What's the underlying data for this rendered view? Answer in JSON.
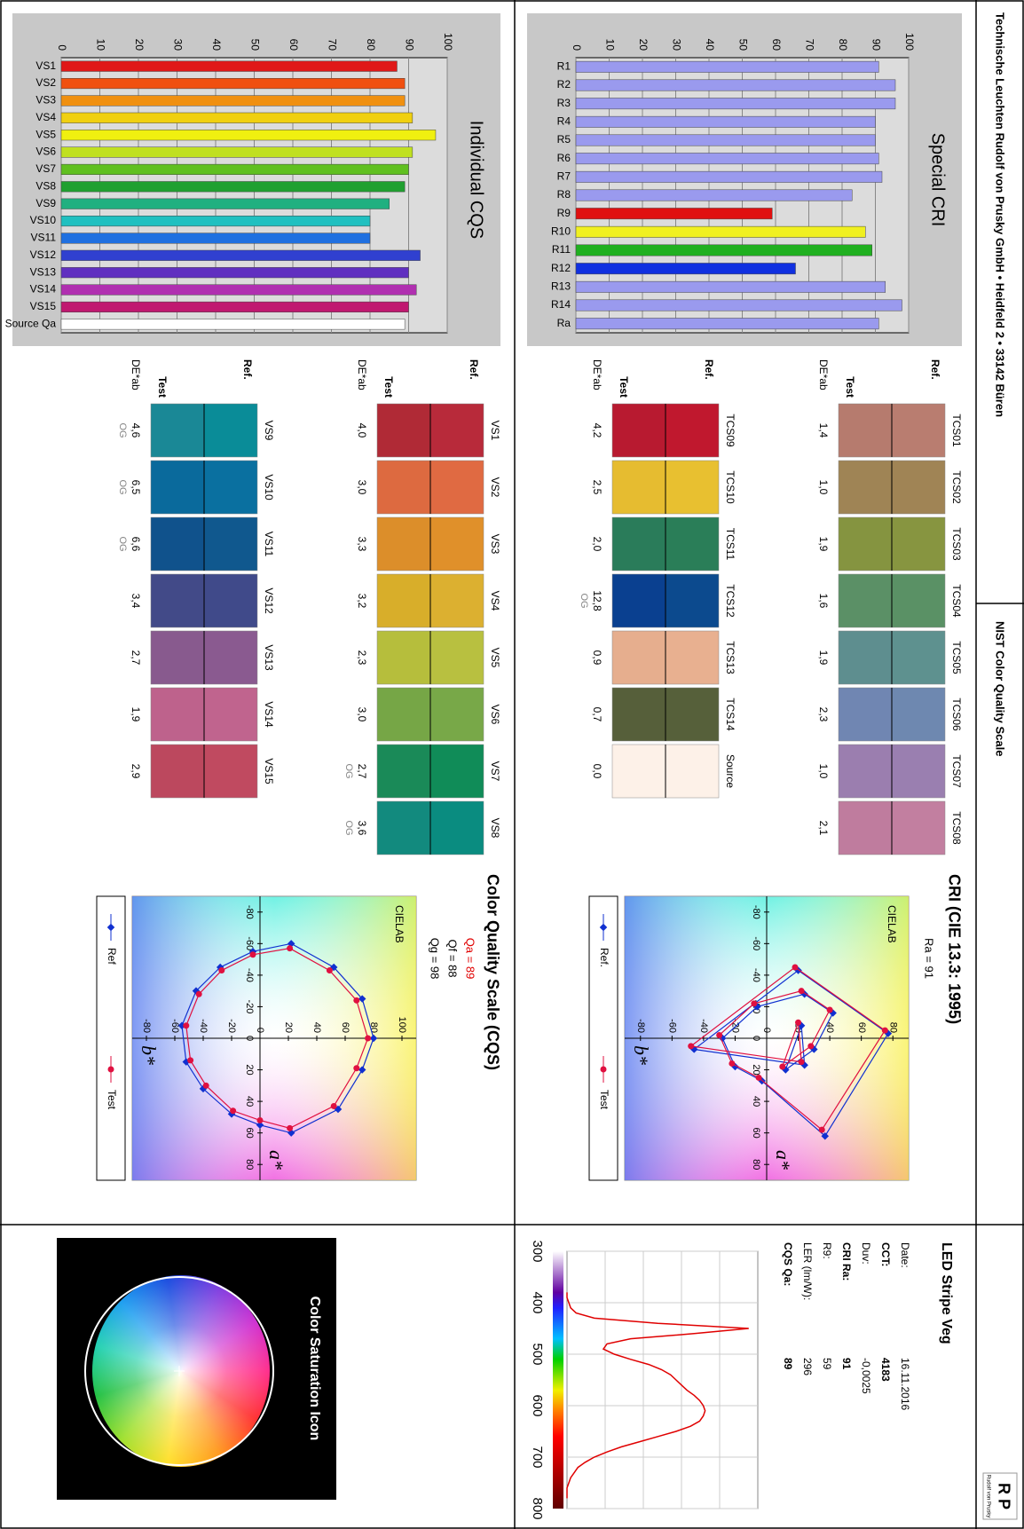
{
  "header": {
    "company": "Technische Leuchten Rudolf von Prusky GmbH • Heidfeld 2 • 33142 Büren",
    "title": "NIST Color Quality Scale",
    "logo": "R P",
    "logo_caption": "Rudolf von Prusky"
  },
  "led": {
    "title": "LED Stripe Veg",
    "rows": [
      {
        "label": "Date:",
        "value": "16.11.2016",
        "bold": false
      },
      {
        "label": "CCT:",
        "value": "4183",
        "bold": true
      },
      {
        "label": "Duv:",
        "value": "-0,0025",
        "bold": false
      },
      {
        "label": "CRI Ra:",
        "value": "91",
        "bold": true
      },
      {
        "label": "R9:",
        "value": "59",
        "bold": false
      },
      {
        "label": "LER (lm/W):",
        "value": "296",
        "bold": false
      },
      {
        "label": "CQS Qa:",
        "value": "89",
        "bold": true
      }
    ]
  },
  "spectrum": {
    "type": "line",
    "color": "#e00000",
    "x": [
      380,
      390,
      400,
      410,
      420,
      430,
      440,
      450,
      460,
      470,
      480,
      490,
      500,
      510,
      520,
      530,
      540,
      550,
      560,
      570,
      580,
      590,
      600,
      610,
      620,
      630,
      640,
      650,
      660,
      670,
      680,
      690,
      700,
      710,
      720,
      730,
      740,
      750,
      760,
      770,
      780
    ],
    "values": [
      0,
      0,
      0.01,
      0.02,
      0.05,
      0.15,
      0.5,
      1.0,
      0.7,
      0.35,
      0.22,
      0.2,
      0.26,
      0.35,
      0.45,
      0.52,
      0.57,
      0.6,
      0.63,
      0.66,
      0.7,
      0.73,
      0.75,
      0.76,
      0.75,
      0.73,
      0.68,
      0.6,
      0.5,
      0.4,
      0.3,
      0.22,
      0.15,
      0.1,
      0.06,
      0.04,
      0.02,
      0.01,
      0,
      0,
      0
    ],
    "xlim": [
      300,
      800
    ],
    "ylim": [
      0,
      1.05
    ],
    "xticks": [
      300,
      400,
      500,
      600,
      700,
      800
    ],
    "grid": true
  },
  "saturation_icon": {
    "title": "Color Saturation Icon"
  },
  "cri": {
    "title": "CRI (CIE 13.3: 1995)",
    "summary": [
      {
        "text": "Ra = 91",
        "color": "#000000"
      }
    ],
    "cielab": {
      "type": "scatter",
      "label": "CIELAB",
      "xlabel": "a*",
      "ylabel": "b*",
      "xlim": [
        -90,
        90
      ],
      "ylim": [
        -90,
        90
      ],
      "xticks": [
        -80,
        -60,
        -40,
        -20,
        0,
        20,
        40,
        60,
        80
      ],
      "yticks": [
        -80,
        -60,
        -40,
        -20,
        0,
        20,
        40,
        60,
        80
      ],
      "series": [
        {
          "name": "Ref.",
          "color": "#1030d0",
          "marker": "diamond",
          "a": [
            20,
            7,
            -16,
            -28,
            -20,
            0,
            18,
            27,
            62,
            -3,
            -43,
            7,
            17,
            -8
          ],
          "b": [
            12,
            30,
            42,
            24,
            -6,
            -28,
            -20,
            -3,
            37,
            77,
            20,
            -46,
            24,
            22
          ]
        },
        {
          "name": "Test",
          "color": "#e01040",
          "marker": "circle",
          "a": [
            18,
            5,
            -18,
            -30,
            -22,
            -2,
            16,
            25,
            58,
            -5,
            -45,
            5,
            15,
            -10
          ],
          "b": [
            10,
            28,
            40,
            22,
            -8,
            -30,
            -22,
            -5,
            35,
            75,
            18,
            -48,
            22,
            20
          ]
        }
      ]
    },
    "swatch_labels": {
      "ref": "Ref.",
      "test": "Test",
      "de": "DE*ab"
    },
    "swatches": [
      [
        {
          "name": "TCS01",
          "ref": "#b97d70",
          "test": "#b67b6e",
          "de": "1,4"
        },
        {
          "name": "TCS02",
          "ref": "#a08455",
          "test": "#9f8455",
          "de": "1,0"
        },
        {
          "name": "TCS03",
          "ref": "#879540",
          "test": "#859440",
          "de": "1,9"
        },
        {
          "name": "TCS04",
          "ref": "#5a9165",
          "test": "#5b9066",
          "de": "1,6"
        },
        {
          "name": "TCS05",
          "ref": "#5e918f",
          "test": "#5e8e8f",
          "de": "1,9"
        },
        {
          "name": "TCS06",
          "ref": "#6e88b0",
          "test": "#7086b2",
          "de": "2,3"
        },
        {
          "name": "TCS07",
          "ref": "#9a7fb0",
          "test": "#9b7eaf",
          "de": "1,0"
        },
        {
          "name": "TCS08",
          "ref": "#c27fa0",
          "test": "#bf7c9e",
          "de": "2,1"
        }
      ],
      [
        {
          "name": "TCS09",
          "ref": "#c0182e",
          "test": "#b81a30",
          "de": "4,2"
        },
        {
          "name": "TCS10",
          "ref": "#e8c030",
          "test": "#e6bc30",
          "de": "2,5"
        },
        {
          "name": "TCS11",
          "ref": "#2a7e58",
          "test": "#2a7c5a",
          "de": "2,0"
        },
        {
          "name": "TCS12",
          "ref": "#0c4a8e",
          "test": "#0a4090",
          "de": "12,8",
          "og": "OG"
        },
        {
          "name": "TCS13",
          "ref": "#e8b090",
          "test": "#e6ae8e",
          "de": "0,9"
        },
        {
          "name": "TCS14",
          "ref": "#56603a",
          "test": "#565f3a",
          "de": "0,7"
        },
        {
          "name": "Source",
          "ref": "#fdf1e8",
          "test": "#fdf1e8",
          "de": "0,0"
        }
      ]
    ],
    "special": {
      "type": "bar",
      "title": "Special CRI",
      "categories": [
        "R1",
        "R2",
        "R3",
        "R4",
        "R5",
        "R6",
        "R7",
        "R8",
        "R9",
        "R10",
        "R11",
        "R12",
        "R13",
        "R14",
        "Ra"
      ],
      "values": [
        91,
        96,
        96,
        90,
        90,
        91,
        92,
        83,
        59,
        87,
        89,
        66,
        93,
        98,
        91
      ],
      "colors": [
        "#9a9aee",
        "#9a9aee",
        "#9a9aee",
        "#9a9aee",
        "#9a9aee",
        "#9a9aee",
        "#9a9aee",
        "#9a9aee",
        "#e01010",
        "#f0f020",
        "#20b020",
        "#1030e0",
        "#9a9aee",
        "#9a9aee",
        "#9a9aee"
      ],
      "ylim": [
        0,
        100
      ],
      "yticks": [
        0,
        10,
        20,
        30,
        40,
        50,
        60,
        70,
        80,
        90,
        100
      ],
      "grid": true
    }
  },
  "cqs": {
    "title": "Color Quality Scale (CQS)",
    "summary": [
      {
        "text": "Qa = 89",
        "color": "#e00000"
      },
      {
        "text": "Qf = 88",
        "color": "#000000"
      },
      {
        "text": "Qg = 98",
        "color": "#000000"
      }
    ],
    "cielab": {
      "type": "scatter",
      "label": "CIELAB",
      "xlabel": "a*",
      "ylabel": "b*",
      "xlim": [
        -90,
        90
      ],
      "ylim": [
        -90,
        110
      ],
      "xticks": [
        -80,
        -60,
        -40,
        -20,
        0,
        20,
        40,
        60,
        80
      ],
      "yticks": [
        -80,
        -60,
        -40,
        -20,
        0,
        20,
        40,
        60,
        80,
        100
      ],
      "series": [
        {
          "name": "Ref",
          "color": "#1030d0",
          "marker": "diamond",
          "a": [
            60,
            45,
            20,
            0,
            -25,
            -45,
            -60,
            -55,
            -45,
            -30,
            -8,
            15,
            32,
            48,
            55
          ],
          "b": [
            22,
            55,
            72,
            80,
            72,
            52,
            22,
            -5,
            -28,
            -45,
            -55,
            -52,
            -40,
            -20,
            0
          ]
        },
        {
          "name": "Test",
          "color": "#e01040",
          "marker": "circle",
          "a": [
            57,
            43,
            19,
            0,
            -24,
            -43,
            -57,
            -53,
            -43,
            -28,
            -8,
            14,
            30,
            46,
            52
          ],
          "b": [
            21,
            52,
            68,
            76,
            68,
            49,
            21,
            -5,
            -27,
            -43,
            -52,
            -49,
            -38,
            -19,
            0
          ]
        }
      ]
    },
    "swatch_labels": {
      "ref": "Ref.",
      "test": "Test",
      "de": "DE*ab"
    },
    "swatches": [
      [
        {
          "name": "VS1",
          "ref": "#b82a3a",
          "test": "#b02a36",
          "de": "4,0"
        },
        {
          "name": "VS2",
          "ref": "#e06a42",
          "test": "#dd6a40",
          "de": "3,0"
        },
        {
          "name": "VS3",
          "ref": "#e0902a",
          "test": "#dc8e2a",
          "de": "3,3"
        },
        {
          "name": "VS4",
          "ref": "#dcb030",
          "test": "#d8ae2a",
          "de": "3,2"
        },
        {
          "name": "VS5",
          "ref": "#b8c040",
          "test": "#b6be3c",
          "de": "2,3"
        },
        {
          "name": "VS6",
          "ref": "#78a848",
          "test": "#76a646",
          "de": "3,0"
        },
        {
          "name": "VS7",
          "ref": "#108c58",
          "test": "#1a8a58",
          "de": "2,7",
          "og": "OG"
        },
        {
          "name": "VS8",
          "ref": "#0a8c80",
          "test": "#128a7e",
          "de": "3,6",
          "og": "OG"
        }
      ],
      [
        {
          "name": "VS9",
          "ref": "#0a8c98",
          "test": "#1a8896",
          "de": "4,6",
          "og": "OG"
        },
        {
          "name": "VS10",
          "ref": "#0a70a0",
          "test": "#0a6a9c",
          "de": "6,5",
          "og": "OG"
        },
        {
          "name": "VS11",
          "ref": "#10588e",
          "test": "#10528c",
          "de": "6,6",
          "og": "OG"
        },
        {
          "name": "VS12",
          "ref": "#404a8a",
          "test": "#424a88",
          "de": "3,4"
        },
        {
          "name": "VS13",
          "ref": "#8a5a90",
          "test": "#885a8e",
          "de": "2,7"
        },
        {
          "name": "VS14",
          "ref": "#c0648e",
          "test": "#be628c",
          "de": "1,9"
        },
        {
          "name": "VS15",
          "ref": "#c04a60",
          "test": "#bc485e",
          "de": "2,9"
        }
      ]
    ],
    "individual": {
      "type": "bar",
      "title": "Individual CQS",
      "categories": [
        "VS1",
        "VS2",
        "VS3",
        "VS4",
        "VS5",
        "VS6",
        "VS7",
        "VS8",
        "VS9",
        "VS10",
        "VS11",
        "VS12",
        "VS13",
        "VS14",
        "VS15",
        "Source Qa"
      ],
      "values": [
        87,
        89,
        89,
        91,
        97,
        91,
        90,
        89,
        85,
        80,
        80,
        93,
        90,
        92,
        90,
        89
      ],
      "colors": [
        "#e01818",
        "#f05010",
        "#f09010",
        "#f0d010",
        "#f0f010",
        "#c0e020",
        "#60c020",
        "#20a030",
        "#20b080",
        "#20c0c0",
        "#2070e0",
        "#3040d0",
        "#6030c0",
        "#b030b0",
        "#c01870",
        "#ffffff"
      ],
      "ylim": [
        0,
        100
      ],
      "yticks": [
        0,
        10,
        20,
        30,
        40,
        50,
        60,
        70,
        80,
        90,
        100
      ],
      "grid": true
    }
  }
}
